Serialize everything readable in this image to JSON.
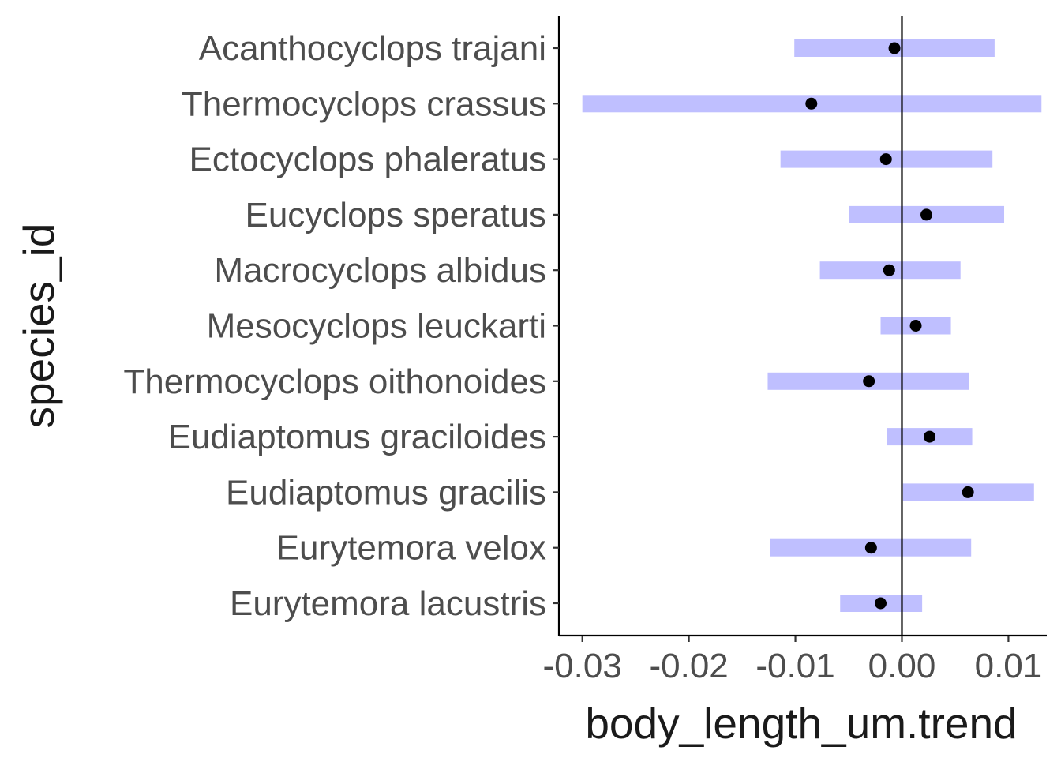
{
  "chart_data": {
    "type": "interval",
    "title": "",
    "xlabel": "body_length_um.trend",
    "ylabel": "species_id",
    "xlim": [
      -0.0322,
      0.0136
    ],
    "x_ticks": [
      -0.03,
      -0.02,
      -0.01,
      0.0,
      0.01
    ],
    "x_tick_labels": [
      "-0.03",
      "-0.02",
      "-0.01",
      "0.00",
      "0.01"
    ],
    "reference_line_x": 0.0,
    "grid": false,
    "legend": "none",
    "colors": {
      "interval": "#bfbfff",
      "point": "#000000",
      "axis": "#000000"
    },
    "categories": [
      "Acanthocyclops trajani",
      "Thermocyclops crassus",
      "Ectocyclops phaleratus",
      "Eucyclops speratus",
      "Macrocyclops albidus",
      "Mesocyclops leuckarti",
      "Thermocyclops oithonoides",
      "Eudiaptomus graciloides",
      "Eudiaptomus gracilis",
      "Eurytemora velox",
      "Eurytemora lacustris"
    ],
    "estimate": [
      -0.0007,
      -0.0085,
      -0.0015,
      0.0023,
      -0.0012,
      0.0013,
      -0.0031,
      0.0026,
      0.0062,
      -0.0029,
      -0.002
    ],
    "lower": [
      -0.0101,
      -0.03,
      -0.0114,
      -0.005,
      -0.0077,
      -0.002,
      -0.0126,
      -0.0014,
      0.0001,
      -0.0124,
      -0.0058
    ],
    "upper": [
      0.0087,
      0.0131,
      0.0085,
      0.0096,
      0.0055,
      0.0046,
      0.0063,
      0.0066,
      0.0124,
      0.0065,
      0.0019
    ]
  }
}
